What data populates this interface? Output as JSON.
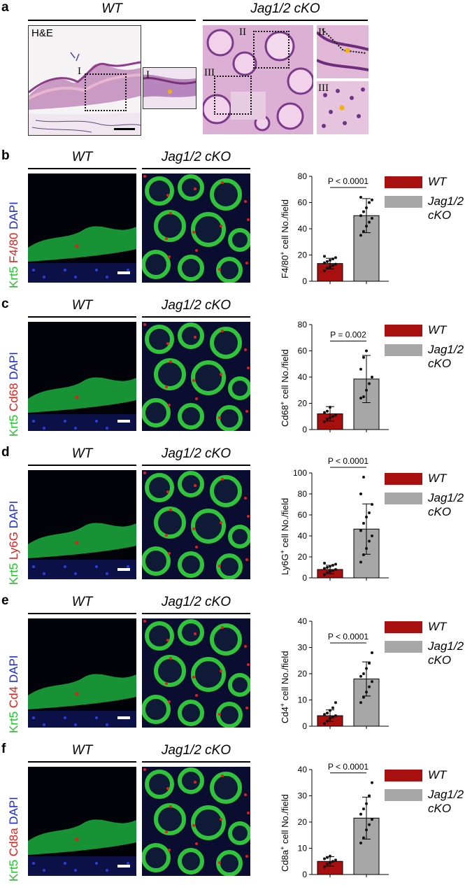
{
  "panel_a": {
    "letter": "a",
    "wt_label": "WT",
    "cko_label": "Jag1/2 cKO",
    "stain_label": "H&E",
    "roman_I": "I",
    "roman_II": "II",
    "roman_III": "III"
  },
  "panels": [
    {
      "letter": "b",
      "wt": "WT",
      "cko": "Jag1/2 cKO",
      "stain_parts": [
        "Krt5",
        "F4/80",
        "DAPI"
      ]
    },
    {
      "letter": "c",
      "wt": "WT",
      "cko": "Jag1/2 cKO",
      "stain_parts": [
        "Krt5",
        "Cd68",
        "DAPI"
      ]
    },
    {
      "letter": "d",
      "wt": "WT",
      "cko": "Jag1/2 cKO",
      "stain_parts": [
        "Krt5",
        "Ly6G",
        "DAPI"
      ]
    },
    {
      "letter": "e",
      "wt": "WT",
      "cko": "Jag1/2 cKO",
      "stain_parts": [
        "Krt5",
        "Cd4",
        "DAPI"
      ]
    },
    {
      "letter": "f",
      "wt": "WT",
      "cko": "Jag1/2 cKO",
      "stain_parts": [
        "Krt5",
        "Cd8a",
        "DAPI"
      ]
    }
  ],
  "colors": {
    "wt_bar": "#a81010",
    "cko_bar": "#a7a7a7",
    "krt5": "#22c12a",
    "marker": "#e0201c",
    "dapi": "#1b2bd8"
  },
  "chart_data": [
    {
      "type": "bar",
      "categories": [
        "WT",
        "Jag1/2 cKO"
      ],
      "values": [
        13.5,
        50
      ],
      "errors": [
        4,
        13
      ],
      "ylabel": "F4/80+ cell No./field",
      "ylabel_main": "F4/80",
      "ylabel_sup": "+",
      "ylabel_rest": " cell No./field",
      "ylim": [
        0,
        80
      ],
      "yticks": [
        0,
        20,
        40,
        60,
        80
      ],
      "pvalue": "P < 0.0001",
      "points": [
        [
          8,
          10,
          11,
          12,
          13,
          14,
          15,
          16,
          17,
          18,
          19
        ],
        [
          35,
          38,
          42,
          45,
          48,
          50,
          53,
          56,
          60,
          62,
          64
        ]
      ],
      "legend": [
        "WT",
        "Jag1/2 cKO"
      ]
    },
    {
      "type": "bar",
      "categories": [
        "WT",
        "Jag1/2 cKO"
      ],
      "values": [
        12,
        38.5
      ],
      "errors": [
        5.5,
        18
      ],
      "ylabel": "Cd68+ cell No./field",
      "ylabel_main": "Cd68",
      "ylabel_sup": "+",
      "ylabel_rest": " cell No./field",
      "ylim": [
        0,
        80
      ],
      "yticks": [
        0,
        20,
        40,
        60,
        80
      ],
      "pvalue": "P = 0.002",
      "points": [
        [
          6,
          8,
          9,
          10,
          11,
          13,
          14,
          17
        ],
        [
          24,
          25,
          30,
          35,
          40,
          46,
          55,
          60
        ]
      ],
      "legend": [
        "WT",
        "Jag1/2 cKO"
      ]
    },
    {
      "type": "bar",
      "categories": [
        "WT",
        "Jag1/2 cKO"
      ],
      "values": [
        8,
        46.5
      ],
      "errors": [
        4,
        24
      ],
      "ylabel": "Ly6G+ cell No./field",
      "ylabel_main": "Ly6G",
      "ylabel_sup": "+",
      "ylabel_rest": " cell No./field",
      "ylim": [
        0,
        100
      ],
      "yticks": [
        0,
        20,
        40,
        60,
        80,
        100
      ],
      "pvalue": "P < 0.0001",
      "points": [
        [
          3,
          5,
          6,
          7,
          8,
          9,
          10,
          11,
          12,
          13,
          14
        ],
        [
          15,
          22,
          28,
          35,
          40,
          45,
          52,
          58,
          62,
          70,
          80,
          96
        ]
      ],
      "legend": [
        "WT",
        "Jag1/2 cKO"
      ]
    },
    {
      "type": "bar",
      "categories": [
        "WT",
        "Jag1/2 cKO"
      ],
      "values": [
        4,
        18
      ],
      "errors": [
        2.2,
        6.5
      ],
      "ylabel": "Cd4+ cell No./field",
      "ylabel_main": "Cd4",
      "ylabel_sup": "+",
      "ylabel_rest": " cell No./field",
      "ylim": [
        0,
        40
      ],
      "yticks": [
        0,
        10,
        20,
        30,
        40
      ],
      "pvalue": "P < 0.0001",
      "points": [
        [
          1,
          2,
          3,
          3.5,
          4,
          4.5,
          5,
          6,
          7,
          9
        ],
        [
          9,
          11,
          13,
          15,
          17,
          19,
          20,
          22,
          24,
          28
        ]
      ],
      "legend": [
        "WT",
        "Jag1/2 cKO"
      ]
    },
    {
      "type": "bar",
      "categories": [
        "WT",
        "Jag1/2 cKO"
      ],
      "values": [
        5,
        21.5
      ],
      "errors": [
        1.8,
        8
      ],
      "ylabel": "Cd8a+ cell No./field",
      "ylabel_main": "Cd8a",
      "ylabel_sup": "+",
      "ylabel_rest": " cell No./field",
      "ylim": [
        0,
        40
      ],
      "yticks": [
        0,
        10,
        20,
        30,
        40
      ],
      "pvalue": "P < 0.0001",
      "points": [
        [
          3,
          4,
          4.5,
          5,
          5.5,
          6,
          6.5,
          7
        ],
        [
          12,
          14,
          17,
          19,
          21,
          23,
          25,
          27,
          30,
          35
        ]
      ],
      "legend": [
        "WT",
        "Jag1/2 cKO"
      ]
    }
  ]
}
